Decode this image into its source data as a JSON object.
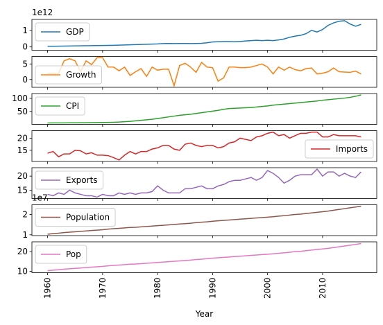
{
  "chart_data": [
    {
      "type": "line",
      "offset_text": "1e12",
      "legend": "upper left",
      "x": [
        1960,
        1961,
        1962,
        1963,
        1964,
        1965,
        1966,
        1967,
        1968,
        1969,
        1970,
        1971,
        1972,
        1973,
        1974,
        1975,
        1976,
        1977,
        1978,
        1979,
        1980,
        1981,
        1982,
        1983,
        1984,
        1985,
        1986,
        1987,
        1988,
        1989,
        1990,
        1991,
        1992,
        1993,
        1994,
        1995,
        1996,
        1997,
        1998,
        1999,
        2000,
        2001,
        2002,
        2003,
        2004,
        2005,
        2006,
        2007,
        2008,
        2009,
        2010,
        2011,
        2012,
        2013,
        2014,
        2015,
        2016,
        2017
      ],
      "series": [
        {
          "name": "GDP",
          "color": "#1f77b4",
          "values": [
            0.04,
            0.04,
            0.045,
            0.05,
            0.055,
            0.06,
            0.065,
            0.07,
            0.075,
            0.08,
            0.085,
            0.09,
            0.1,
            0.11,
            0.12,
            0.13,
            0.14,
            0.15,
            0.16,
            0.17,
            0.18,
            0.2,
            0.21,
            0.2,
            0.21,
            0.21,
            0.2,
            0.21,
            0.22,
            0.25,
            0.3,
            0.31,
            0.32,
            0.32,
            0.31,
            0.33,
            0.36,
            0.38,
            0.4,
            0.38,
            0.4,
            0.38,
            0.42,
            0.48,
            0.58,
            0.65,
            0.7,
            0.8,
            1.0,
            0.9,
            1.05,
            1.3,
            1.45,
            1.55,
            1.58,
            1.38,
            1.25,
            1.36
          ]
        }
      ],
      "xlim": [
        1957.15,
        2019.85
      ],
      "ylim": [
        -0.2,
        1.66
      ],
      "yticks": [
        0,
        1
      ]
    },
    {
      "type": "line",
      "legend": "lower left",
      "x": [
        1960,
        1961,
        1962,
        1963,
        1964,
        1965,
        1966,
        1967,
        1968,
        1969,
        1970,
        1971,
        1972,
        1973,
        1974,
        1975,
        1976,
        1977,
        1978,
        1979,
        1980,
        1981,
        1982,
        1983,
        1984,
        1985,
        1986,
        1987,
        1988,
        1989,
        1990,
        1991,
        1992,
        1993,
        1994,
        1995,
        1996,
        1997,
        1998,
        1999,
        2000,
        2001,
        2002,
        2003,
        2004,
        2005,
        2006,
        2007,
        2008,
        2009,
        2010,
        2011,
        2012,
        2013,
        2014,
        2015,
        2016,
        2017
      ],
      "series": [
        {
          "name": "Growth",
          "color": "#ff7f0e",
          "values": [
            2,
            2,
            2,
            6,
            6.7,
            6,
            2.5,
            6,
            4.8,
            7,
            7,
            4,
            4,
            2.8,
            4,
            1.3,
            2.5,
            3.5,
            1,
            4,
            3,
            3.3,
            3.3,
            -2,
            4.5,
            5.2,
            4,
            2.3,
            5.5,
            4,
            3.8,
            -0.5,
            0.5,
            4,
            4,
            3.8,
            3.8,
            4,
            4.5,
            5,
            4,
            1.8,
            4,
            3,
            4,
            3.2,
            2.8,
            3.5,
            3.7,
            1.8,
            2,
            2.5,
            3.7,
            2.5,
            2.4,
            2.3,
            2.7,
            1.8
          ]
        }
      ],
      "xlim": [
        1957.15,
        2019.85
      ],
      "ylim": [
        -2.5,
        7.4
      ],
      "yticks": [
        0,
        5
      ]
    },
    {
      "type": "line",
      "legend": "upper left",
      "x": [
        1960,
        1961,
        1962,
        1963,
        1964,
        1965,
        1966,
        1967,
        1968,
        1969,
        1970,
        1971,
        1972,
        1973,
        1974,
        1975,
        1976,
        1977,
        1978,
        1979,
        1980,
        1981,
        1982,
        1983,
        1984,
        1985,
        1986,
        1987,
        1988,
        1989,
        1990,
        1991,
        1992,
        1993,
        1994,
        1995,
        1996,
        1997,
        1998,
        1999,
        2000,
        2001,
        2002,
        2003,
        2004,
        2005,
        2006,
        2007,
        2008,
        2009,
        2010,
        2011,
        2012,
        2013,
        2014,
        2015,
        2016,
        2017
      ],
      "series": [
        {
          "name": "CPI",
          "color": "#2ca02c",
          "values": [
            5.7,
            5.8,
            5.9,
            6,
            6.1,
            6.3,
            6.5,
            6.7,
            7,
            7.3,
            7.7,
            8,
            8.4,
            9.2,
            10.5,
            12,
            14,
            16,
            18,
            20,
            23,
            26,
            29,
            32,
            35,
            37,
            39,
            42,
            45,
            48,
            51,
            54,
            58,
            61,
            62,
            63,
            64,
            65,
            67,
            69,
            71,
            74,
            76,
            78,
            80,
            82,
            84,
            86,
            88,
            90,
            93,
            95,
            97,
            99,
            101,
            104,
            108,
            113
          ]
        }
      ],
      "xlim": [
        1957.15,
        2019.85
      ],
      "ylim": [
        0.3,
        118.4
      ],
      "yticks": [
        50,
        100
      ]
    },
    {
      "type": "line",
      "legend": "lower right",
      "x": [
        1960,
        1961,
        1962,
        1963,
        1964,
        1965,
        1966,
        1967,
        1968,
        1969,
        1970,
        1971,
        1972,
        1973,
        1974,
        1975,
        1976,
        1977,
        1978,
        1979,
        1980,
        1981,
        1982,
        1983,
        1984,
        1985,
        1986,
        1987,
        1988,
        1989,
        1990,
        1991,
        1992,
        1993,
        1994,
        1995,
        1996,
        1997,
        1998,
        1999,
        2000,
        2001,
        2002,
        2003,
        2004,
        2005,
        2006,
        2007,
        2008,
        2009,
        2010,
        2011,
        2012,
        2013,
        2014,
        2015,
        2016,
        2017
      ],
      "series": [
        {
          "name": "Imports",
          "color": "#d62728",
          "values": [
            13.8,
            14.5,
            12.3,
            13.5,
            13.5,
            15,
            14.8,
            13.5,
            14,
            13,
            13,
            12.8,
            12,
            11,
            13,
            14.5,
            13.5,
            14.5,
            14.5,
            15.5,
            16,
            17,
            17,
            15.5,
            15,
            17.5,
            18,
            17,
            16.5,
            17,
            17,
            16,
            16.5,
            18,
            18.5,
            20,
            19.5,
            19,
            20.5,
            21,
            22,
            22.5,
            21,
            21.5,
            20,
            21,
            22,
            22,
            22.5,
            22.5,
            20.5,
            20.5,
            21.5,
            21,
            21,
            21,
            21,
            20.5
          ]
        }
      ],
      "xlim": [
        1957.15,
        2019.85
      ],
      "ylim": [
        10.4,
        23.1
      ],
      "yticks": [
        15,
        20
      ]
    },
    {
      "type": "line",
      "legend": "upper left",
      "x": [
        1960,
        1961,
        1962,
        1963,
        1964,
        1965,
        1966,
        1967,
        1968,
        1969,
        1970,
        1971,
        1972,
        1973,
        1974,
        1975,
        1976,
        1977,
        1978,
        1979,
        1980,
        1981,
        1982,
        1983,
        1984,
        1985,
        1986,
        1987,
        1988,
        1989,
        1990,
        1991,
        1992,
        1993,
        1994,
        1995,
        1996,
        1997,
        1998,
        1999,
        2000,
        2001,
        2002,
        2003,
        2004,
        2005,
        2006,
        2007,
        2008,
        2009,
        2010,
        2011,
        2012,
        2013,
        2014,
        2015,
        2016,
        2017
      ],
      "series": [
        {
          "name": "Exports",
          "color": "#9467bd",
          "values": [
            13.5,
            13,
            14,
            13.5,
            15,
            14,
            13.5,
            13,
            13,
            12.5,
            13.5,
            13,
            13,
            14,
            13.5,
            14,
            13.5,
            14,
            14,
            14.5,
            16.5,
            15,
            14,
            14,
            14,
            15.5,
            15.5,
            16,
            16.5,
            15.5,
            15.5,
            16.5,
            17,
            18,
            18.5,
            18.5,
            19,
            19.5,
            18.5,
            19.5,
            22,
            21,
            19.5,
            17.5,
            18.5,
            20,
            20.5,
            20.5,
            20.5,
            22.5,
            20,
            21.5,
            21.5,
            20,
            21,
            20,
            19.5,
            21.5
          ]
        }
      ],
      "xlim": [
        1957.15,
        2019.85
      ],
      "ylim": [
        12,
        23
      ],
      "yticks": [
        15,
        20
      ]
    },
    {
      "type": "line",
      "offset_text": "1e7",
      "legend": "upper left",
      "x": [
        1960,
        1961,
        1962,
        1963,
        1964,
        1965,
        1966,
        1967,
        1968,
        1969,
        1970,
        1971,
        1972,
        1973,
        1974,
        1975,
        1976,
        1977,
        1978,
        1979,
        1980,
        1981,
        1982,
        1983,
        1984,
        1985,
        1986,
        1987,
        1988,
        1989,
        1990,
        1991,
        1992,
        1993,
        1994,
        1995,
        1996,
        1997,
        1998,
        1999,
        2000,
        2001,
        2002,
        2003,
        2004,
        2005,
        2006,
        2007,
        2008,
        2009,
        2010,
        2011,
        2012,
        2013,
        2014,
        2015,
        2016,
        2017
      ],
      "series": [
        {
          "name": "Population",
          "color": "#8c564b",
          "values": [
            1.03,
            1.06,
            1.08,
            1.11,
            1.13,
            1.15,
            1.17,
            1.19,
            1.21,
            1.23,
            1.25,
            1.28,
            1.3,
            1.32,
            1.34,
            1.36,
            1.37,
            1.39,
            1.41,
            1.43,
            1.45,
            1.47,
            1.49,
            1.51,
            1.53,
            1.55,
            1.57,
            1.6,
            1.62,
            1.64,
            1.67,
            1.69,
            1.71,
            1.73,
            1.75,
            1.77,
            1.79,
            1.81,
            1.83,
            1.85,
            1.87,
            1.89,
            1.92,
            1.94,
            1.97,
            2,
            2.02,
            2.05,
            2.08,
            2.11,
            2.14,
            2.17,
            2.21,
            2.25,
            2.29,
            2.33,
            2.37,
            2.41
          ]
        }
      ],
      "xlim": [
        1957.15,
        2019.85
      ],
      "ylim": [
        0.96,
        2.48
      ],
      "yticks": [
        1,
        2
      ]
    },
    {
      "type": "line",
      "legend": "upper left",
      "xlabel": "Year",
      "x": [
        1960,
        1961,
        1962,
        1963,
        1964,
        1965,
        1966,
        1967,
        1968,
        1969,
        1970,
        1971,
        1972,
        1973,
        1974,
        1975,
        1976,
        1977,
        1978,
        1979,
        1980,
        1981,
        1982,
        1983,
        1984,
        1985,
        1986,
        1987,
        1988,
        1989,
        1990,
        1991,
        1992,
        1993,
        1994,
        1995,
        1996,
        1997,
        1998,
        1999,
        2000,
        2001,
        2002,
        2003,
        2004,
        2005,
        2006,
        2007,
        2008,
        2009,
        2010,
        2011,
        2012,
        2013,
        2014,
        2015,
        2016,
        2017
      ],
      "series": [
        {
          "name": "Pop",
          "color": "#e377c2",
          "values": [
            10.3,
            10.6,
            10.8,
            11.1,
            11.3,
            11.5,
            11.7,
            11.9,
            12.1,
            12.3,
            12.5,
            12.8,
            13,
            13.2,
            13.4,
            13.6,
            13.7,
            13.9,
            14.1,
            14.3,
            14.5,
            14.7,
            14.9,
            15.1,
            15.3,
            15.5,
            15.7,
            16,
            16.2,
            16.4,
            16.7,
            16.9,
            17.1,
            17.3,
            17.5,
            17.7,
            17.9,
            18.1,
            18.3,
            18.5,
            18.7,
            18.9,
            19.2,
            19.4,
            19.7,
            20,
            20.2,
            20.5,
            20.8,
            21.1,
            21.4,
            21.7,
            22.1,
            22.5,
            22.9,
            23.3,
            23.7,
            24.1
          ]
        }
      ],
      "xlim": [
        1957.15,
        2019.85
      ],
      "ylim": [
        9.3,
        25
      ],
      "yticks": [
        10,
        20
      ],
      "xticks": [
        1960,
        1970,
        1980,
        1990,
        2000,
        2010
      ]
    }
  ]
}
